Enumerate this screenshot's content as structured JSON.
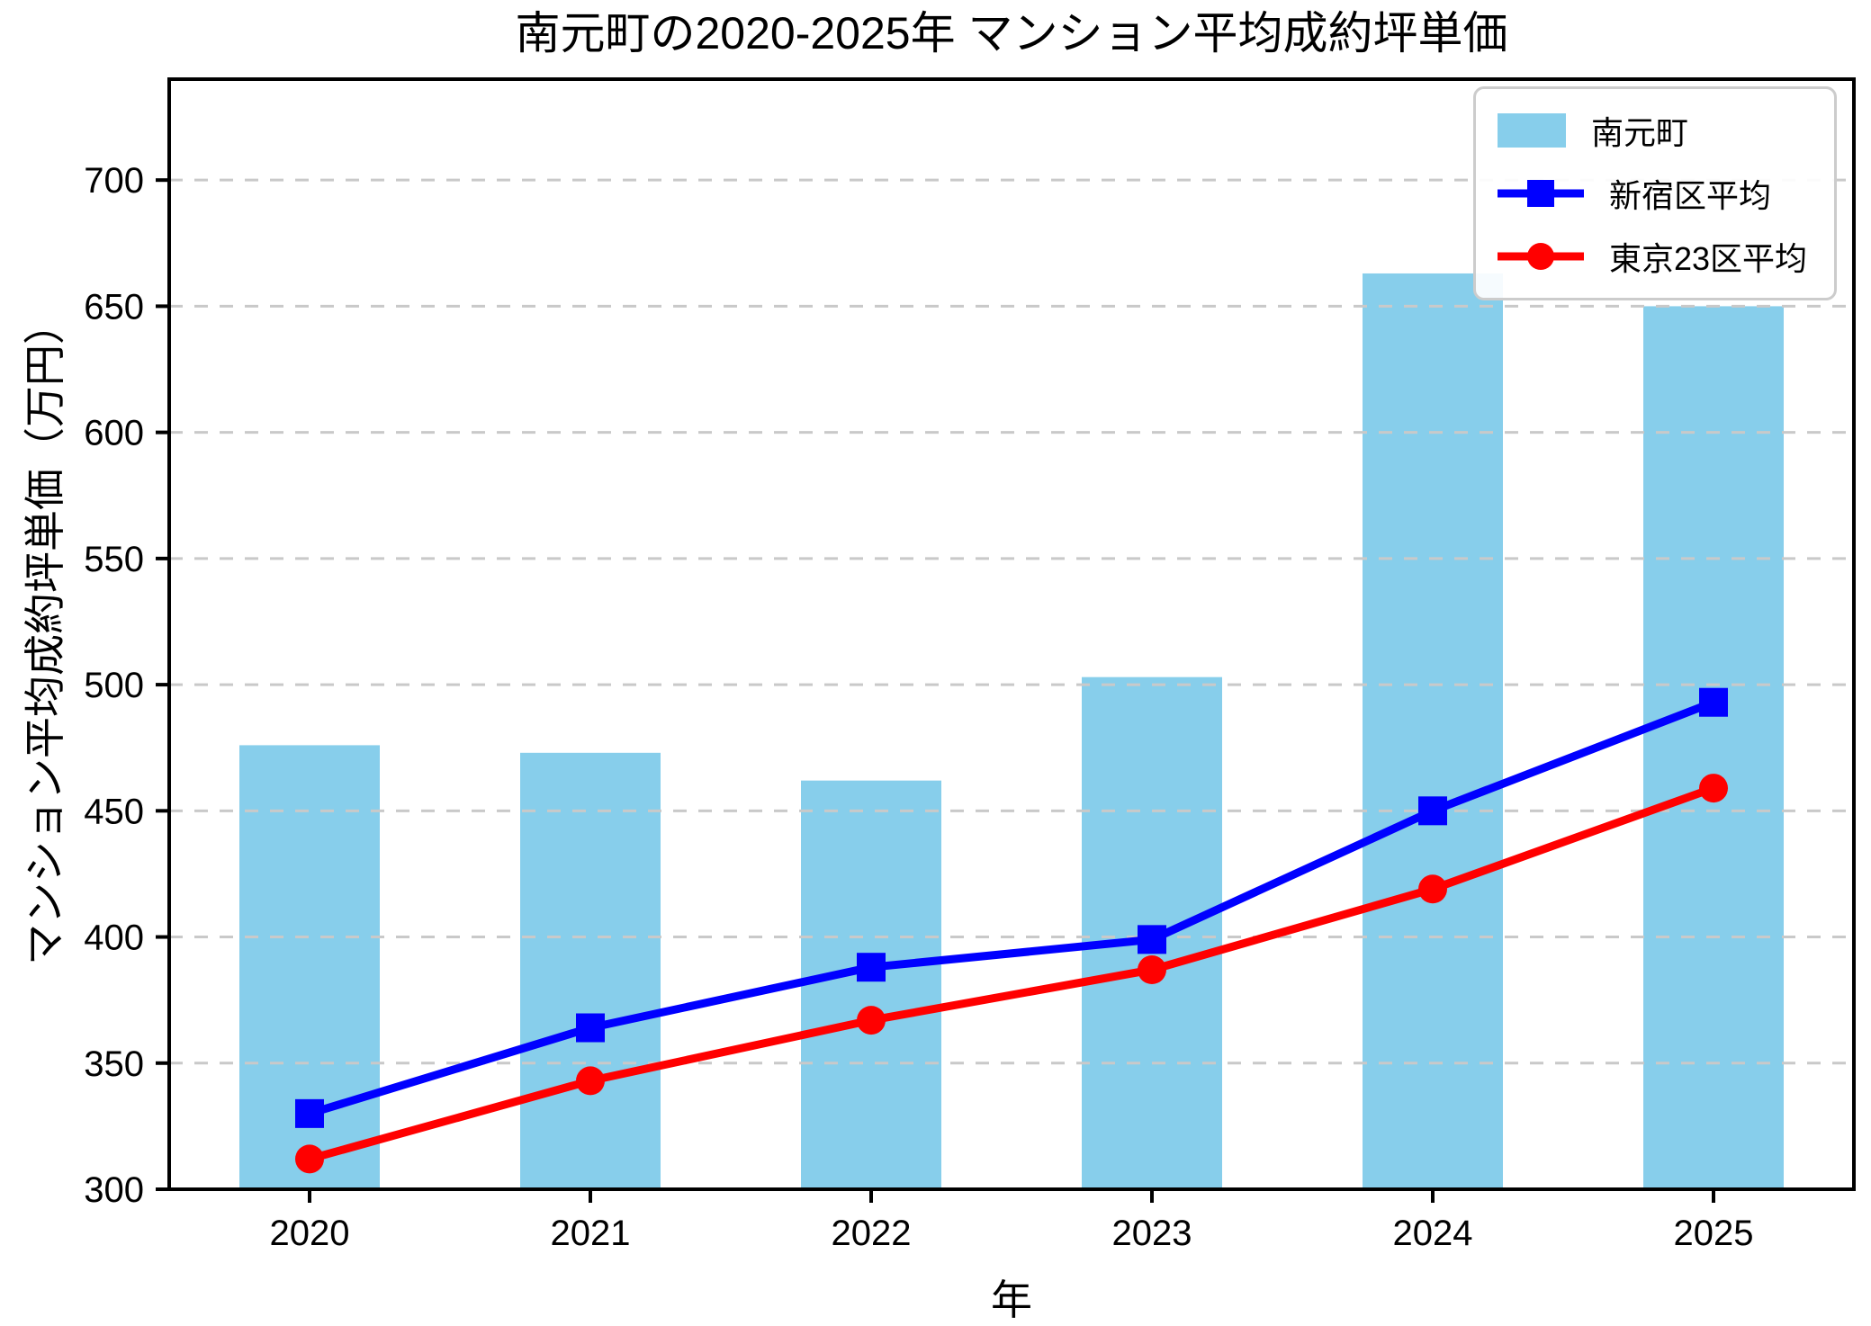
{
  "title": "南元町の2020-2025年 マンション平均成約坪単価",
  "xlabel": "年",
  "ylabel": "マンション平均成約坪単価（万円）",
  "legend": {
    "position": "upper right",
    "items": [
      "南元町",
      "新宿区平均",
      "東京23区平均"
    ]
  },
  "chart_data": {
    "type": "bar",
    "categories": [
      "2020",
      "2021",
      "2022",
      "2023",
      "2024",
      "2025"
    ],
    "series": [
      {
        "name": "南元町",
        "type": "bar",
        "color": "#87CEEB",
        "values": [
          476,
          473,
          462,
          503,
          663,
          650
        ]
      },
      {
        "name": "新宿区平均",
        "type": "line",
        "marker": "square",
        "color": "#0000FF",
        "values": [
          330,
          364,
          388,
          399,
          450,
          493
        ]
      },
      {
        "name": "東京23区平均",
        "type": "line",
        "marker": "circle",
        "color": "#FF0000",
        "values": [
          312,
          343,
          367,
          387,
          419,
          459
        ]
      }
    ],
    "ylim": [
      300,
      740
    ],
    "yticks": [
      300,
      350,
      400,
      450,
      500,
      550,
      600,
      650,
      700
    ],
    "grid": "horizontal-dashed",
    "grid_color": "#c9c9c9",
    "legend_position": "upper right"
  }
}
